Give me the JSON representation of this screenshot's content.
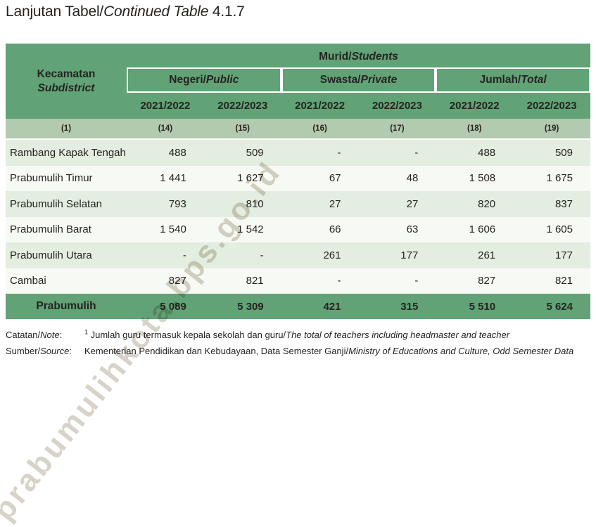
{
  "title": {
    "prefix": "Lanjutan Tabel/",
    "italic": "Continued Table",
    "suffix": " 4.1.7"
  },
  "watermark": "prabumulihkota.bps.go.id",
  "colors": {
    "header_green": "#61a276",
    "column_number_row_green": "#b2caaf",
    "row_light_green": "#e3ede0",
    "row_off_white": "#f7f9f4",
    "text_dark": "#262321",
    "watermark_gray": "#d0ccbf"
  },
  "table": {
    "stub": {
      "line1": "Kecamatan",
      "line2": "Subdistrict"
    },
    "top_header": {
      "label": "Murid/",
      "label_en": "Students"
    },
    "groups": [
      {
        "label": "Negeri/",
        "label_en": "Public"
      },
      {
        "label": "Swasta/",
        "label_en": "Private"
      },
      {
        "label": "Jumlah/",
        "label_en": "Total"
      }
    ],
    "years": [
      "2021/2022",
      "2022/2023",
      "2021/2022",
      "2022/2023",
      "2021/2022",
      "2022/2023"
    ],
    "col_numbers": [
      "(1)",
      "(14)",
      "(15)",
      "(16)",
      "(17)",
      "(18)",
      "(19)"
    ],
    "rows": [
      {
        "name": "Rambang Kapak Tengah",
        "values": [
          "488",
          "509",
          "-",
          "-",
          "488",
          "509"
        ]
      },
      {
        "name": "Prabumulih Timur",
        "values": [
          "1 441",
          "1 627",
          "67",
          "48",
          "1 508",
          "1 675"
        ]
      },
      {
        "name": "Prabumulih Selatan",
        "values": [
          "793",
          "810",
          "27",
          "27",
          "820",
          "837"
        ]
      },
      {
        "name": "Prabumulih Barat",
        "values": [
          "1 540",
          "1 542",
          "66",
          "63",
          "1 606",
          "1 605"
        ]
      },
      {
        "name": "Prabumulih Utara",
        "values": [
          "-",
          "-",
          "261",
          "177",
          "261",
          "177"
        ]
      },
      {
        "name": "Cambai",
        "values": [
          "827",
          "821",
          "-",
          "-",
          "827",
          "821"
        ]
      }
    ],
    "total": {
      "name": "Prabumulih",
      "values": [
        "5 089",
        "5 309",
        "421",
        "315",
        "5 510",
        "5 624"
      ]
    }
  },
  "footer": {
    "note_label": "Catatan/",
    "note_label_en": "Note",
    "note_colon": ":",
    "note_sup": "1",
    "note_text": " Jumlah guru termasuk kepala sekolah dan guru/",
    "note_text_en": "The total of teachers including headmaster and teacher",
    "source_label": "Sumber/",
    "source_label_en": "Source",
    "source_colon": ":",
    "source_text": "Kementerian Pendidikan dan Kebudayaan, Data Semester Ganji/",
    "source_text_en": "Ministry of Educations and Culture, Odd Semester Data"
  }
}
